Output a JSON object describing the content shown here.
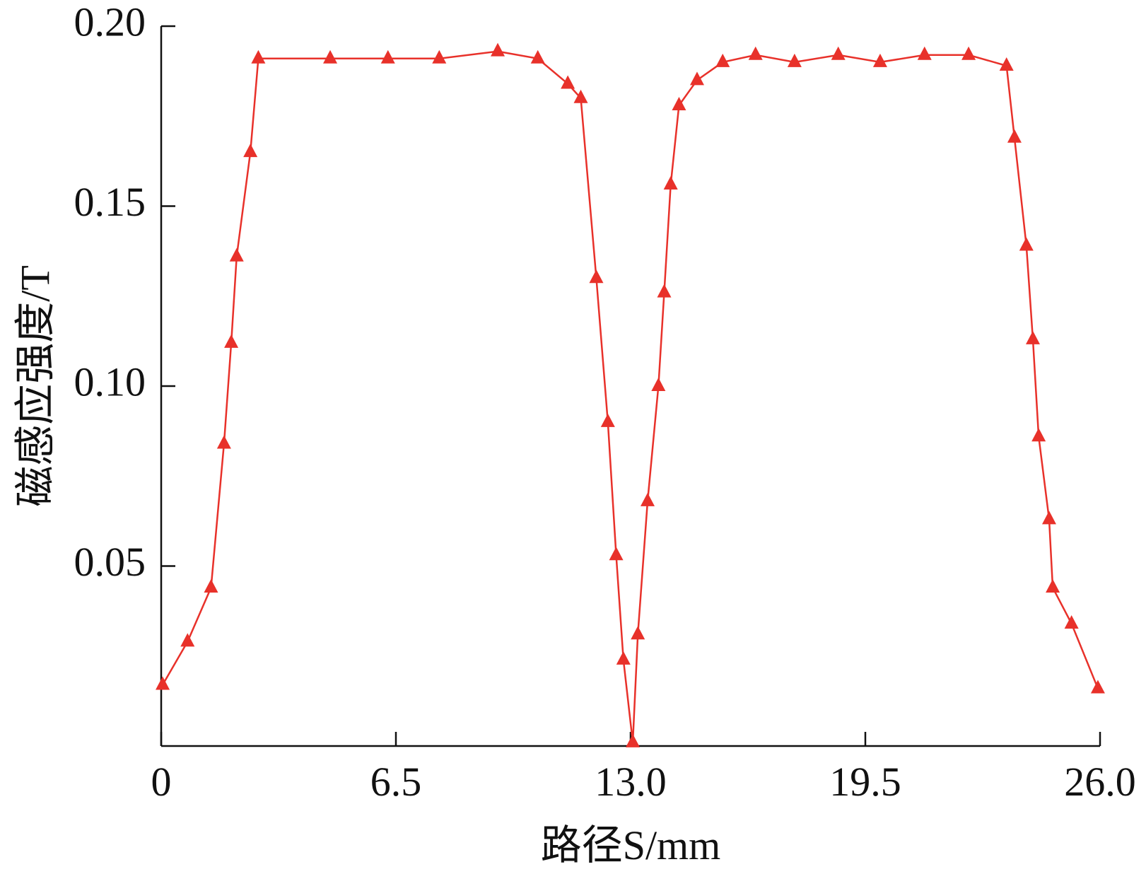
{
  "chart_data": {
    "type": "line",
    "xlabel": "路径S/mm",
    "ylabel": "磁感应强度/T",
    "xlim": [
      0,
      26
    ],
    "ylim": [
      0,
      0.2
    ],
    "xticks": [
      0,
      6.5,
      {
        "value": 13,
        "label": "13.0"
      },
      19.5,
      {
        "value": 26,
        "label": "26.0"
      }
    ],
    "yticks": [
      0.05,
      {
        "value": 0.1,
        "label": "0.10"
      },
      0.15,
      {
        "value": 0.2,
        "label": "0.20"
      }
    ],
    "marker": "triangle",
    "series": [
      {
        "color": "#e8312a",
        "x": [
          0.04,
          0.73,
          1.38,
          1.74,
          1.94,
          2.09,
          2.47,
          2.69,
          4.68,
          6.28,
          7.7,
          9.32,
          10.43,
          11.26,
          11.62,
          12.05,
          12.37,
          12.6,
          12.8,
          13.06,
          13.2,
          13.47,
          13.77,
          13.93,
          14.11,
          14.34,
          14.84,
          15.55,
          16.46,
          17.54,
          18.75,
          19.91,
          21.14,
          22.36,
          23.41,
          23.63,
          23.96,
          24.14,
          24.3,
          24.59,
          24.69,
          25.21,
          25.94
        ],
        "values": [
          0.017,
          0.029,
          0.044,
          0.084,
          0.112,
          0.136,
          0.165,
          0.191,
          0.191,
          0.191,
          0.191,
          0.193,
          0.191,
          0.184,
          0.18,
          0.13,
          0.09,
          0.053,
          0.024,
          0.001,
          0.031,
          0.068,
          0.1,
          0.126,
          0.156,
          0.178,
          0.185,
          0.19,
          0.192,
          0.19,
          0.192,
          0.19,
          0.192,
          0.192,
          0.189,
          0.169,
          0.139,
          0.113,
          0.086,
          0.063,
          0.044,
          0.034,
          0.016
        ]
      }
    ]
  }
}
